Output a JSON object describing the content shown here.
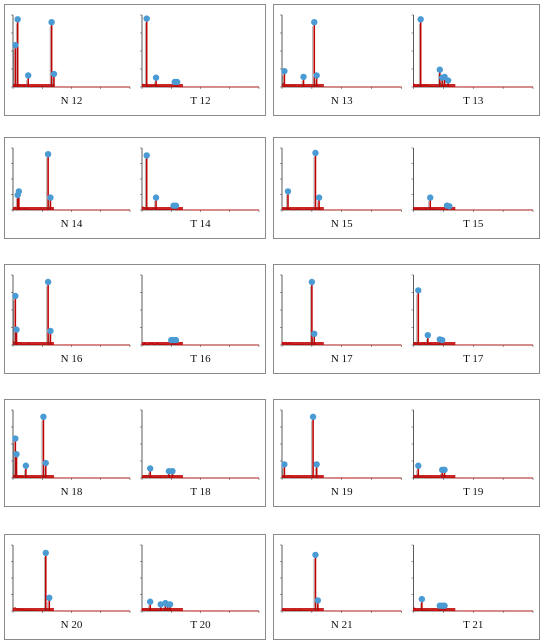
{
  "colors": {
    "trace": "#c00000",
    "marker": "#4a9ad4",
    "axis": "#333333",
    "frame": "#8a8a8a"
  },
  "chart_data": [
    {
      "type": "line",
      "panel": 1,
      "pair": [
        {
          "label": "N 12",
          "peaks": [
            {
              "x": 0.04,
              "y": 0.94
            },
            {
              "x": 0.02,
              "y": 0.58
            },
            {
              "x": 0.13,
              "y": 0.16
            },
            {
              "x": 0.33,
              "y": 0.9
            },
            {
              "x": 0.35,
              "y": 0.18
            }
          ]
        },
        {
          "label": "T 12",
          "peaks": [
            {
              "x": 0.04,
              "y": 0.95
            },
            {
              "x": 0.12,
              "y": 0.13
            },
            {
              "x": 0.28,
              "y": 0.07
            },
            {
              "x": 0.3,
              "y": 0.07
            }
          ]
        }
      ]
    },
    {
      "type": "line",
      "panel": 2,
      "pair": [
        {
          "label": "N 13",
          "peaks": [
            {
              "x": 0.02,
              "y": 0.22
            },
            {
              "x": 0.18,
              "y": 0.14
            },
            {
              "x": 0.27,
              "y": 0.9
            },
            {
              "x": 0.29,
              "y": 0.16
            }
          ]
        },
        {
          "label": "T 13",
          "peaks": [
            {
              "x": 0.06,
              "y": 0.94
            },
            {
              "x": 0.22,
              "y": 0.24
            },
            {
              "x": 0.24,
              "y": 0.13
            },
            {
              "x": 0.26,
              "y": 0.14
            },
            {
              "x": 0.29,
              "y": 0.09
            }
          ]
        }
      ]
    },
    {
      "type": "line",
      "panel": 3,
      "pair": [
        {
          "label": "N 14",
          "peaks": [
            {
              "x": 0.05,
              "y": 0.3
            },
            {
              "x": 0.04,
              "y": 0.24
            },
            {
              "x": 0.3,
              "y": 0.9
            },
            {
              "x": 0.32,
              "y": 0.2
            }
          ]
        },
        {
          "label": "T 14",
          "peaks": [
            {
              "x": 0.04,
              "y": 0.88
            },
            {
              "x": 0.12,
              "y": 0.2
            },
            {
              "x": 0.27,
              "y": 0.07
            },
            {
              "x": 0.29,
              "y": 0.07
            }
          ]
        }
      ]
    },
    {
      "type": "line",
      "panel": 4,
      "pair": [
        {
          "label": "N 15",
          "peaks": [
            {
              "x": 0.05,
              "y": 0.3
            },
            {
              "x": 0.28,
              "y": 0.92
            },
            {
              "x": 0.31,
              "y": 0.2
            }
          ]
        },
        {
          "label": "T 15",
          "peaks": [
            {
              "x": 0.14,
              "y": 0.2
            },
            {
              "x": 0.28,
              "y": 0.07
            },
            {
              "x": 0.3,
              "y": 0.06
            }
          ]
        }
      ]
    },
    {
      "type": "line",
      "panel": 5,
      "pair": [
        {
          "label": "N 16",
          "peaks": [
            {
              "x": 0.02,
              "y": 0.7
            },
            {
              "x": 0.03,
              "y": 0.22
            },
            {
              "x": 0.3,
              "y": 0.9
            },
            {
              "x": 0.32,
              "y": 0.2
            }
          ]
        },
        {
          "label": "T 16",
          "peaks": [
            {
              "x": 0.25,
              "y": 0.07
            },
            {
              "x": 0.27,
              "y": 0.07
            },
            {
              "x": 0.29,
              "y": 0.07
            }
          ]
        }
      ]
    },
    {
      "type": "line",
      "panel": 6,
      "pair": [
        {
          "label": "N 17",
          "peaks": [
            {
              "x": 0.25,
              "y": 0.9
            },
            {
              "x": 0.27,
              "y": 0.16
            }
          ]
        },
        {
          "label": "T 17",
          "peaks": [
            {
              "x": 0.04,
              "y": 0.78
            },
            {
              "x": 0.12,
              "y": 0.14
            },
            {
              "x": 0.22,
              "y": 0.08
            },
            {
              "x": 0.24,
              "y": 0.07
            }
          ]
        }
      ]
    },
    {
      "type": "line",
      "panel": 7,
      "pair": [
        {
          "label": "N 18",
          "peaks": [
            {
              "x": 0.02,
              "y": 0.58
            },
            {
              "x": 0.03,
              "y": 0.35
            },
            {
              "x": 0.11,
              "y": 0.18
            },
            {
              "x": 0.26,
              "y": 0.9
            },
            {
              "x": 0.28,
              "y": 0.22
            }
          ]
        },
        {
          "label": "T 18",
          "peaks": [
            {
              "x": 0.07,
              "y": 0.14
            },
            {
              "x": 0.23,
              "y": 0.1
            },
            {
              "x": 0.26,
              "y": 0.1
            }
          ]
        }
      ]
    },
    {
      "type": "line",
      "panel": 8,
      "pair": [
        {
          "label": "N 19",
          "peaks": [
            {
              "x": 0.02,
              "y": 0.2
            },
            {
              "x": 0.26,
              "y": 0.9
            },
            {
              "x": 0.29,
              "y": 0.2
            }
          ]
        },
        {
          "label": "T 19",
          "peaks": [
            {
              "x": 0.04,
              "y": 0.18
            },
            {
              "x": 0.24,
              "y": 0.12
            },
            {
              "x": 0.26,
              "y": 0.12
            }
          ]
        }
      ]
    },
    {
      "type": "line",
      "panel": 9,
      "pair": [
        {
          "label": "N 20",
          "peaks": [
            {
              "x": 0.28,
              "y": 0.88
            },
            {
              "x": 0.31,
              "y": 0.2
            }
          ]
        },
        {
          "label": "T 20",
          "peaks": [
            {
              "x": 0.07,
              "y": 0.14
            },
            {
              "x": 0.16,
              "y": 0.1
            },
            {
              "x": 0.2,
              "y": 0.12
            },
            {
              "x": 0.22,
              "y": 0.1
            },
            {
              "x": 0.24,
              "y": 0.1
            }
          ]
        }
      ]
    },
    {
      "type": "line",
      "panel": 10,
      "pair": [
        {
          "label": "N 21",
          "peaks": [
            {
              "x": 0.28,
              "y": 0.85
            },
            {
              "x": 0.3,
              "y": 0.16
            }
          ]
        },
        {
          "label": "T 21",
          "peaks": [
            {
              "x": 0.07,
              "y": 0.18
            },
            {
              "x": 0.22,
              "y": 0.08
            },
            {
              "x": 0.24,
              "y": 0.08
            },
            {
              "x": 0.26,
              "y": 0.08
            }
          ]
        }
      ]
    }
  ]
}
